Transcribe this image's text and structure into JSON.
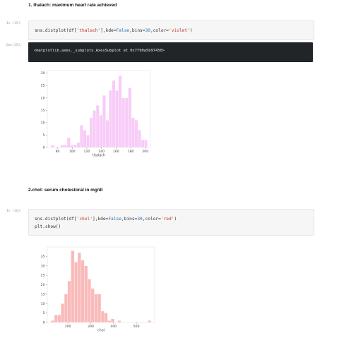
{
  "cells": [
    {
      "heading": "1. thalach: maximum heart rate achieved",
      "in_prompt": "In [15]:",
      "code_lines": [
        [
          {
            "t": "sns.distplot(df["
          },
          {
            "t": "'thalach'",
            "c": "str"
          },
          {
            "t": "],kde="
          },
          {
            "t": "False",
            "c": "kw"
          },
          {
            "t": ",bins="
          },
          {
            "t": "30",
            "c": "kw"
          },
          {
            "t": ",color="
          },
          {
            "t": "'violet'",
            "c": "str"
          },
          {
            "t": ")"
          }
        ]
      ],
      "out_prompt": "Out[15]:",
      "output_text": "<matplotlib.axes._subplots.AxesSubplot at 0x7f90a5b97450>"
    },
    {
      "heading": "2.chol: serum cholestoral in mg/dl",
      "in_prompt": "In [16]:",
      "code_lines": [
        [
          {
            "t": "sns.distplot(df["
          },
          {
            "t": "'chol'",
            "c": "str"
          },
          {
            "t": "],kde="
          },
          {
            "t": "False",
            "c": "kw"
          },
          {
            "t": ",bins="
          },
          {
            "t": "30",
            "c": "kw"
          },
          {
            "t": ",color="
          },
          {
            "t": "'red'",
            "c": "str"
          },
          {
            "t": ")"
          }
        ],
        [
          {
            "t": "plt.show()"
          }
        ]
      ]
    }
  ],
  "chart_data": [
    {
      "type": "bar",
      "color": "#ee82ee",
      "xlabel": "thalach",
      "ylabel": "",
      "xlim": [
        66,
        207
      ],
      "ylim": [
        0,
        31
      ],
      "xticks": [
        80,
        100,
        120,
        140,
        160,
        180,
        200
      ],
      "yticks": [
        0,
        5,
        10,
        15,
        20,
        25,
        30
      ],
      "bin_start": 71,
      "bin_width": 4.4,
      "values": [
        1,
        0,
        0,
        1,
        1,
        4,
        1,
        1,
        2,
        9,
        7,
        5,
        12,
        15,
        17,
        13,
        21,
        11,
        23,
        27,
        23,
        29,
        20,
        20,
        24,
        12,
        11,
        7,
        3,
        3
      ]
    },
    {
      "type": "bar",
      "color": "#f15a5a",
      "xlabel": "chol",
      "ylabel": "",
      "xlim": [
        110,
        580
      ],
      "ylim": [
        0,
        40
      ],
      "xticks": [
        200,
        300,
        400,
        500
      ],
      "yticks": [
        0,
        5,
        10,
        15,
        20,
        25,
        30,
        35
      ],
      "bin_start": 126,
      "bin_width": 14.6,
      "values": [
        1,
        4,
        4,
        10,
        15,
        22,
        38,
        32,
        37,
        33,
        30,
        23,
        18,
        15,
        15,
        6,
        5,
        1,
        2,
        0,
        1,
        0,
        0,
        0,
        0,
        0,
        0,
        0,
        0,
        1
      ]
    }
  ]
}
